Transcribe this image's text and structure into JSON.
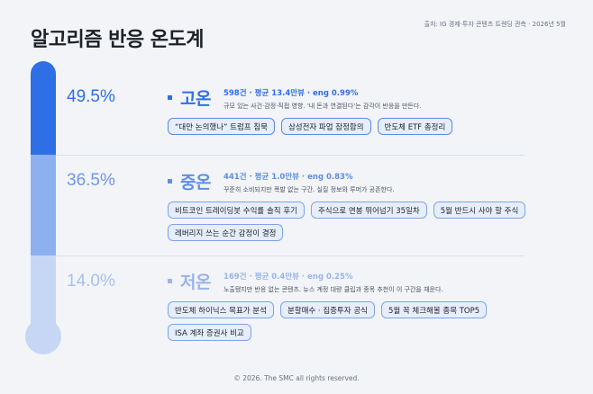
{
  "title": "알고리즘 반응 온도계",
  "source": "출처: IG 경제·투자 콘텐츠 트렌딩 관측 · 2026년 5월",
  "footer": "© 2026. The SMC all rights reserved.",
  "colors": {
    "high": "#2f6fe6",
    "mid": "#8db0ef",
    "low": "#c6d6f5"
  },
  "tiers": [
    {
      "percent": "49.5%",
      "name": "고온",
      "stats": "598건 · 평균 13.4만뷰 · eng 0.99%",
      "desc": "규모 있는 사건·감정·직접 영향. '내 돈과 연결된다'는 감각이 반응을 만든다.",
      "chips": [
        "“대만 논의했나” 트럼프 침묵",
        "삼성전자 파업 잠정합의",
        "반도체 ETF 총정리"
      ]
    },
    {
      "percent": "36.5%",
      "name": "중온",
      "stats": "441건 · 평균 1.0만뷰 · eng 0.83%",
      "desc": "꾸준히 소비되지만 폭발 없는 구간. 실질 정보와 루머가 공존한다.",
      "chips": [
        "비트코인 트레이딩봇 수익률 솔직 후기",
        "주식으로 연봉 뛰어넘기 35일차",
        "5월 반드시 사야 할 주식",
        "레버리지 쓰는 순간 감정이 결정"
      ]
    },
    {
      "percent": "14.0%",
      "name": "저온",
      "stats": "169건 · 평균 0.4만뷰 · eng 0.25%",
      "desc": "노출됐지만 반응 없는 콘텐츠. 뉴스 계정 대량 클립과 종목 추천이 이 구간을 채운다.",
      "chips": [
        "반도체 하이닉스 목표가 분석",
        "분할매수 · 집중투자 공식",
        "5월 꼭 체크해볼 종목 TOP5",
        "ISA 계좌 증권사 비교"
      ]
    }
  ]
}
